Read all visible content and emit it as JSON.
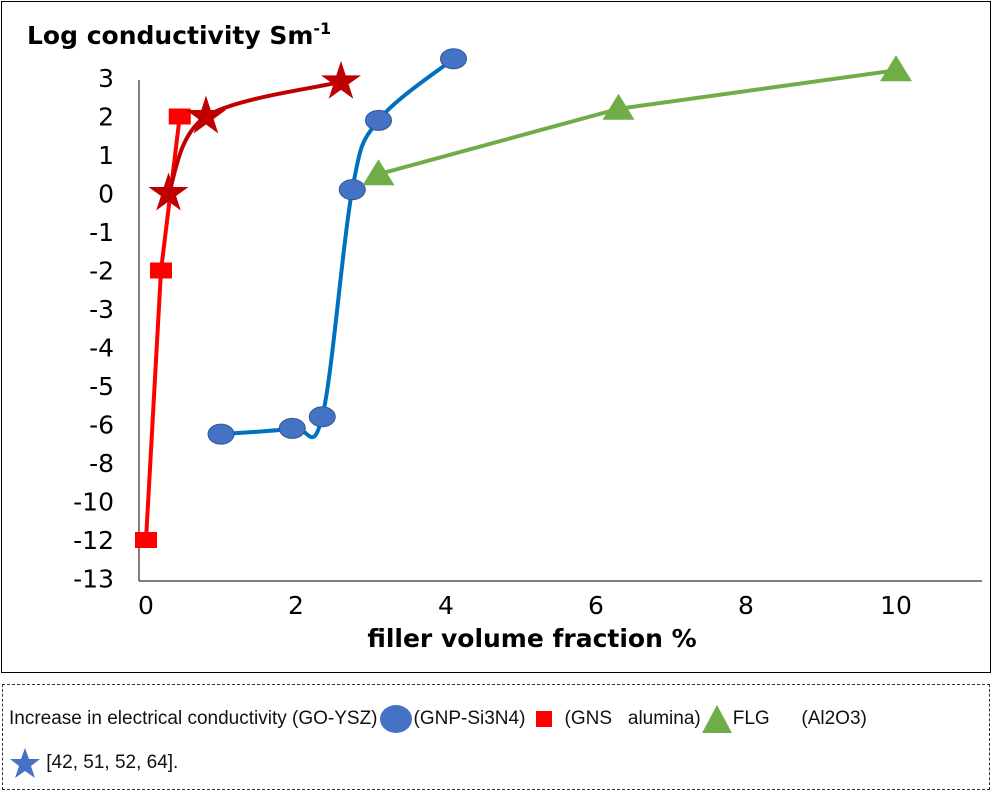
{
  "chart_data": {
    "type": "line",
    "title": "",
    "ylabel": "Log conductivity Sm",
    "ylabel_superscript": "-1",
    "xlabel": "filler volume fraction %",
    "x_ticks": [
      0,
      2,
      4,
      6,
      8,
      10
    ],
    "y_ticks": [
      3,
      2,
      1,
      0,
      -1,
      -2,
      -3,
      -4,
      -5,
      -6,
      -8,
      -10,
      -12,
      -13
    ],
    "xlim": [
      0,
      11
    ],
    "grid": false,
    "series": [
      {
        "marker": "square",
        "color": "#ff0000",
        "smooth": false,
        "x": [
          0,
          0.2,
          0.45
        ],
        "y": [
          -12,
          -2,
          2
        ]
      },
      {
        "marker": "star",
        "color": "#c00000",
        "smooth": true,
        "x": [
          0.3,
          0.8,
          2.6
        ],
        "y": [
          0,
          2,
          2.9
        ]
      },
      {
        "marker": "circle",
        "color": "#4472c4",
        "line_color": "#0070c0",
        "smooth": true,
        "x": [
          1,
          1.95,
          2.35,
          2.75,
          3.1,
          4.1
        ],
        "y": [
          -6.5,
          -6.2,
          -5.8,
          0.1,
          1.9,
          3.5
        ]
      },
      {
        "marker": "triangle",
        "color": "#70ad47",
        "smooth": false,
        "x": [
          3.1,
          6.3,
          10
        ],
        "y": [
          0.5,
          2.2,
          3.2
        ]
      }
    ]
  },
  "caption": {
    "parts": [
      "Increase in electrical conductivity (GO-YSZ)",
      "(GNP-Si3N4)  ",
      "  (GNS   alumina)",
      "FLG      (Al2O3)",
      "[42, 51, 52, 64]."
    ],
    "icons": [
      "circle-icon",
      "square-icon",
      "triangle-icon",
      "star-icon"
    ],
    "icon_colors": [
      "#4472c4",
      "#ff0000",
      "#70ad47",
      "#4472c4"
    ]
  }
}
